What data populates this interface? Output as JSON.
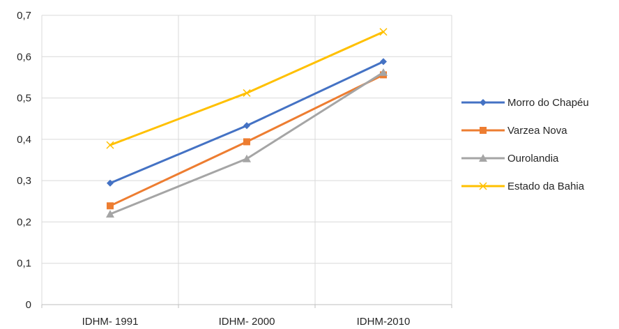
{
  "chart_data": {
    "type": "line",
    "title": "",
    "xlabel": "",
    "ylabel": "",
    "categories": [
      "IDHM- 1991",
      "IDHM- 2000",
      "IDHM-2010"
    ],
    "ylim": [
      0,
      0.7
    ],
    "yticks": [
      "0",
      "0,1",
      "0,2",
      "0,3",
      "0,4",
      "0,5",
      "0,6",
      "0,7"
    ],
    "grid": true,
    "legend_position": "right",
    "series": [
      {
        "name": "Morro do Chapéu",
        "values": [
          0.294,
          0.433,
          0.588
        ],
        "color": "#4472C4",
        "marker": "diamond"
      },
      {
        "name": "Varzea Nova",
        "values": [
          0.239,
          0.394,
          0.556
        ],
        "color": "#ED7D31",
        "marker": "square"
      },
      {
        "name": "Ourolandia",
        "values": [
          0.219,
          0.353,
          0.562
        ],
        "color": "#A5A5A5",
        "marker": "triangle"
      },
      {
        "name": "Estado da Bahia",
        "values": [
          0.386,
          0.512,
          0.66
        ],
        "color": "#FFC000",
        "marker": "x"
      }
    ]
  }
}
